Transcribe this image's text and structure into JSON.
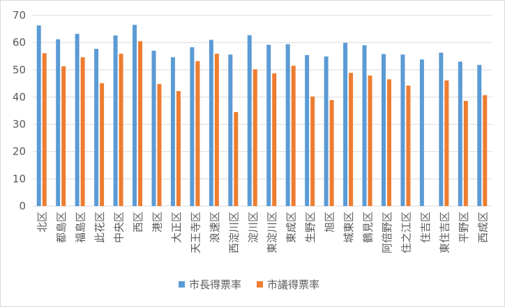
{
  "colors": {
    "mayor": "#5B9BD5",
    "council": "#ED7D31",
    "axis_text": "#595959",
    "grid": "#d9d9d9"
  },
  "chart_data": {
    "type": "bar",
    "ylim": [
      0,
      70
    ],
    "yticks": [
      0,
      10,
      20,
      30,
      40,
      50,
      60,
      70
    ],
    "grid": true,
    "legend_position": "bottom",
    "categories": [
      "北区",
      "都島区",
      "福島区",
      "此花区",
      "中央区",
      "西区",
      "港区",
      "大正区",
      "天王寺区",
      "浪速区",
      "西淀川区",
      "淀川区",
      "東淀川区",
      "東成区",
      "生野区",
      "旭区",
      "城東区",
      "鶴見区",
      "阿倍野区",
      "住之江区",
      "住吉区",
      "東住吉区",
      "平野区",
      "西成区"
    ],
    "series": [
      {
        "name": "市長得票率",
        "values": [
          66.3,
          61.2,
          63.2,
          57.7,
          62.6,
          66.5,
          57.0,
          54.6,
          58.3,
          61.0,
          55.6,
          62.7,
          59.2,
          59.4,
          55.4,
          54.9,
          59.9,
          59.0,
          55.8,
          55.6,
          53.8,
          56.3,
          53.0,
          51.8
        ]
      },
      {
        "name": "市議得票率",
        "values": [
          56.1,
          51.3,
          54.6,
          45.1,
          55.9,
          60.5,
          44.8,
          42.2,
          53.2,
          55.9,
          34.5,
          50.2,
          48.7,
          51.5,
          40.2,
          38.9,
          48.9,
          47.9,
          46.5,
          44.2,
          0,
          46.1,
          38.6,
          40.7
        ]
      }
    ]
  }
}
